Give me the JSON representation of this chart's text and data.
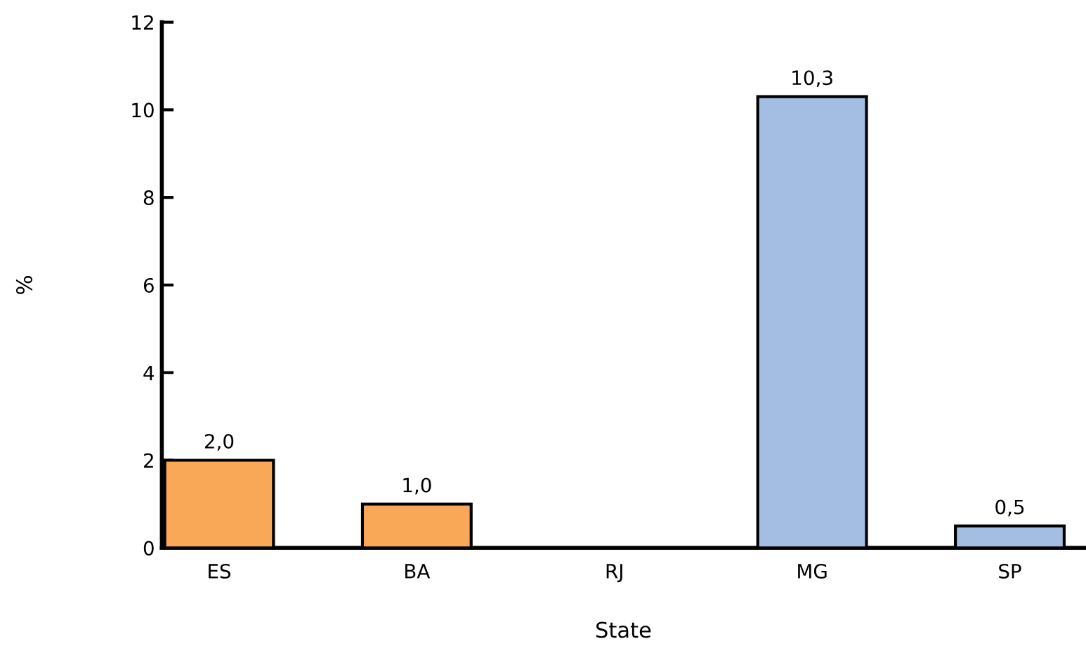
{
  "chart_data": {
    "type": "bar",
    "xlabel": "State",
    "ylabel": "%",
    "categories": [
      "ES",
      "BA",
      "RJ",
      "MG",
      "SP"
    ],
    "values": [
      2.0,
      1.0,
      null,
      10.3,
      0.5
    ],
    "colors": [
      "#f9a857",
      "#f9a857",
      "#a3bde3",
      "#a3bde3",
      "#a3bde3"
    ],
    "value_labels": [
      "2,0",
      "1,0",
      null,
      "10,3",
      "0,5"
    ],
    "ylim": [
      0,
      12
    ],
    "yticks": [
      0,
      2,
      4,
      6,
      8,
      10,
      12
    ],
    "grid": false
  }
}
